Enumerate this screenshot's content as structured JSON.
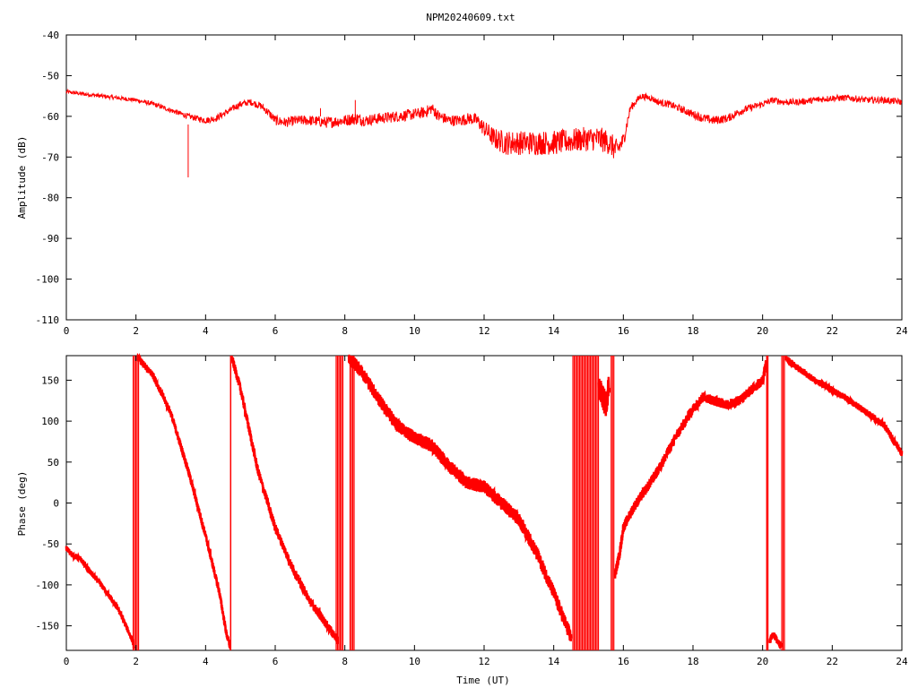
{
  "title": "NPM20240609.txt",
  "trace_color": "#ff0000",
  "chart_data": [
    {
      "type": "line",
      "xlabel": "",
      "ylabel": "Amplitude (dB)",
      "xlim": [
        0,
        24
      ],
      "ylim": [
        -110,
        -40
      ],
      "xticks": [
        "0",
        "2",
        "4",
        "6",
        "8",
        "10",
        "12",
        "14",
        "16",
        "18",
        "20",
        "22",
        "24"
      ],
      "yticks": [
        "-40",
        "-50",
        "-60",
        "-70",
        "-80",
        "-90",
        "-100",
        "-110"
      ],
      "grid": false,
      "series": [
        {
          "x": [
            0,
            0.5,
            1,
            1.5,
            2,
            2.5,
            3,
            3.5,
            4,
            4.3,
            4.6,
            5,
            5.3,
            5.6,
            5.8,
            6,
            6.3,
            6.6,
            7,
            7.5,
            8,
            8.3,
            8.6,
            9,
            9.5,
            10,
            10.3,
            10.5,
            10.7,
            11,
            11.3,
            11.6,
            11.8,
            12,
            12.3,
            12.6,
            13,
            13.5,
            14,
            14.5,
            15,
            15.3,
            15.6,
            15.8,
            16,
            16.2,
            16.5,
            16.8,
            17,
            17.3,
            17.6,
            18,
            18.3,
            18.6,
            19,
            19.3,
            19.6,
            20,
            20.3,
            20.6,
            21,
            21.5,
            22,
            22.5,
            23,
            23.5,
            24
          ],
          "values": [
            -54,
            -54.5,
            -55,
            -55.5,
            -56,
            -57,
            -58.5,
            -60,
            -61,
            -60.5,
            -59,
            -57,
            -56.5,
            -57.5,
            -59,
            -61,
            -61.5,
            -61,
            -61,
            -61.5,
            -61,
            -60.5,
            -61,
            -60.5,
            -60,
            -59.5,
            -59,
            -58,
            -60,
            -61,
            -61,
            -60.5,
            -61,
            -63,
            -65.5,
            -66.5,
            -66.5,
            -66.5,
            -66.5,
            -66,
            -65.5,
            -65.5,
            -66.5,
            -68.5,
            -66,
            -58,
            -55,
            -55.5,
            -56.5,
            -57,
            -58,
            -59.5,
            -60.5,
            -61,
            -60.5,
            -59,
            -58,
            -57,
            -56,
            -56.5,
            -56.5,
            -56,
            -55.5,
            -55.5,
            -56,
            -56,
            -56.5
          ],
          "noise_spread": [
            0.5,
            0.5,
            0.5,
            0.5,
            0.5,
            0.6,
            0.6,
            0.7,
            0.8,
            0.8,
            0.8,
            0.8,
            0.8,
            0.9,
            1,
            1.2,
            1.2,
            1.2,
            1.3,
            1.4,
            1.4,
            1.6,
            1.4,
            1.4,
            1.4,
            1.4,
            1.4,
            1.4,
            1.4,
            1.4,
            1.4,
            1.5,
            1.6,
            2,
            2.6,
            3,
            3,
            3,
            3,
            3,
            3,
            3,
            3,
            3,
            2,
            1,
            0.8,
            0.8,
            0.8,
            0.9,
            0.9,
            1,
            1.1,
            1.1,
            1,
            1,
            0.9,
            0.8,
            0.8,
            0.8,
            0.8,
            0.8,
            0.8,
            0.8,
            0.8,
            0.8,
            0.8
          ],
          "spikes": [
            [
              3.5,
              -62,
              -75
            ],
            [
              7.3,
              -60,
              -58
            ],
            [
              8.3,
              -61,
              -56
            ],
            [
              10.6,
              -60,
              -58
            ]
          ]
        }
      ]
    },
    {
      "type": "line",
      "xlabel": "Time (UT)",
      "ylabel": "Phase (deg)",
      "xlim": [
        0,
        24
      ],
      "ylim": [
        -180,
        180
      ],
      "xticks": [
        "0",
        "2",
        "4",
        "6",
        "8",
        "10",
        "12",
        "14",
        "16",
        "18",
        "20",
        "22",
        "24"
      ],
      "yticks": [
        "150",
        "100",
        "50",
        "0",
        "-50",
        "-100",
        "-150"
      ],
      "grid": false,
      "series": [
        {
          "segments": [
            {
              "x": [
                0,
                0.2,
                0.4,
                0.7,
                1,
                1.5,
                1.9,
                1.95
              ],
              "values": [
                -55,
                -65,
                -68,
                -85,
                -100,
                -130,
                -168,
                -178
              ],
              "noise": 3
            },
            {
              "x": [
                2.05,
                2.2,
                2.5,
                3,
                3.5,
                4,
                4.4,
                4.6,
                4.7
              ],
              "values": [
                178,
                170,
                155,
                110,
                40,
                -40,
                -110,
                -160,
                -175
              ],
              "noise": 4
            },
            {
              "x": [
                4.75,
                5,
                5.5,
                6,
                6.5,
                7,
                7.5,
                7.8
              ],
              "values": [
                178,
                140,
                40,
                -30,
                -80,
                -120,
                -150,
                -168
              ],
              "noise": 5
            },
            {
              "x": [
                8.1,
                8.5,
                9,
                9.5,
                10,
                10.5,
                11,
                11.5,
                12,
                12.5,
                13,
                13.5,
                14,
                14.5
              ],
              "values": [
                178,
                160,
                125,
                95,
                80,
                70,
                45,
                25,
                20,
                0,
                -20,
                -60,
                -110,
                -165
              ],
              "noise": 8
            },
            {
              "x": [
                15.3,
                15.5,
                15.6
              ],
              "values": [
                140,
                120,
                150
              ],
              "noise": 15
            },
            {
              "x": [
                15.75,
                15.9,
                16,
                16.3,
                16.7,
                17,
                17.5,
                18,
                18.3,
                18.6,
                19,
                19.3,
                19.6,
                20,
                20.1
              ],
              "values": [
                -90,
                -60,
                -30,
                -5,
                20,
                40,
                80,
                115,
                130,
                125,
                120,
                125,
                135,
                150,
                170
              ],
              "noise": 6
            },
            {
              "x": [
                20.2,
                20.3,
                20.45,
                20.55
              ],
              "values": [
                -170,
                -160,
                -170,
                -175
              ],
              "noise": 4
            },
            {
              "x": [
                20.65,
                21,
                21.5,
                22,
                22.5,
                23,
                23.5,
                24
              ],
              "values": [
                178,
                165,
                150,
                138,
                125,
                110,
                95,
                60
              ],
              "noise": 4
            }
          ],
          "wrap_bands": [
            [
              1.92,
              2.08
            ],
            [
              7.75,
              7.95
            ],
            [
              8.15,
              8.3
            ],
            [
              14.55,
              15.3
            ],
            [
              15.65,
              15.75
            ],
            [
              20.55,
              20.65
            ]
          ],
          "wrap_lines": [
            4.72,
            20.12,
            20.15
          ]
        }
      ]
    }
  ]
}
